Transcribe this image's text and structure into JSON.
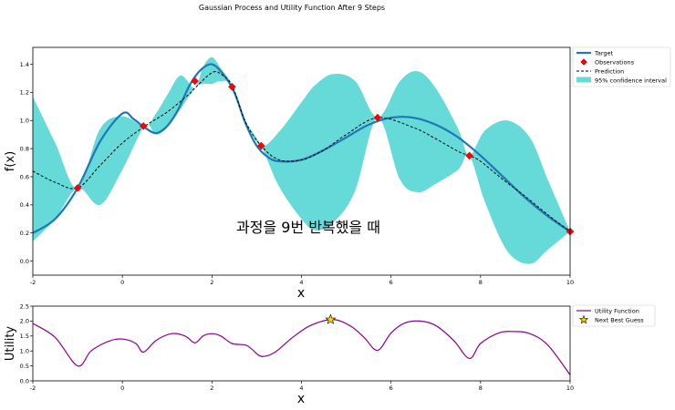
{
  "title": "Gaussian Process and Utility Function After 9 Steps",
  "annotation": "과정을 9번 반복했을 때",
  "colors": {
    "target": "#1f77b4",
    "observation": "#ff0000",
    "prediction": "#000000",
    "confidence": "#66d9d9",
    "utility": "#8b008b",
    "next_guess": "#ffd700"
  },
  "chart_data": [
    {
      "type": "line",
      "name": "gp",
      "xlabel": "x",
      "ylabel": "f(x)",
      "xlim": [
        -2,
        10
      ],
      "ylim": [
        -0.1,
        1.52
      ],
      "xticks": [
        -2,
        0,
        2,
        4,
        6,
        8,
        10
      ],
      "yticks": [
        0.0,
        0.2,
        0.4,
        0.6,
        0.8,
        1.0,
        1.2,
        1.4
      ],
      "grid": false,
      "legend_position": "outside-right-top",
      "legend": [
        "Target",
        "Observations",
        "Prediction",
        "95% confidence interval"
      ],
      "target": {
        "x": [
          -2,
          -1.5,
          -1,
          -0.5,
          0,
          0.25,
          0.5,
          0.75,
          1,
          1.25,
          1.5,
          1.75,
          2,
          2.25,
          2.5,
          2.75,
          3,
          3.25,
          3.5,
          4,
          4.5,
          5,
          5.5,
          6,
          6.5,
          7,
          7.5,
          8,
          8.5,
          9,
          9.5,
          10
        ],
        "y": [
          0.2,
          0.3,
          0.52,
          0.85,
          1.05,
          1.01,
          0.95,
          0.91,
          0.96,
          1.08,
          1.25,
          1.36,
          1.4,
          1.33,
          1.2,
          0.98,
          0.82,
          0.74,
          0.71,
          0.72,
          0.79,
          0.88,
          0.97,
          1.02,
          1.02,
          0.97,
          0.88,
          0.75,
          0.6,
          0.45,
          0.32,
          0.21
        ]
      },
      "prediction": {
        "x": [
          -2,
          -1.5,
          -1,
          -0.5,
          0,
          0.5,
          1,
          1.5,
          1.62,
          2,
          2.2,
          2.45,
          2.75,
          3.1,
          3.5,
          4,
          4.5,
          5,
          5.7,
          6.5,
          7,
          7.5,
          7.75,
          8,
          8.5,
          9,
          9.5,
          10
        ],
        "y": [
          0.64,
          0.56,
          0.52,
          0.68,
          0.84,
          0.96,
          1.06,
          1.19,
          1.23,
          1.34,
          1.33,
          1.25,
          0.99,
          0.82,
          0.72,
          0.72,
          0.79,
          0.9,
          1.02,
          0.95,
          0.87,
          0.78,
          0.75,
          0.71,
          0.58,
          0.46,
          0.33,
          0.21
        ]
      },
      "ci_upper": {
        "x": [
          -2,
          -1.5,
          -1,
          -0.5,
          0,
          0.5,
          0.75,
          1,
          1.3,
          1.62,
          1.8,
          2,
          2.2,
          2.45,
          2.75,
          3.1,
          3.5,
          4,
          4.3,
          4.7,
          5.2,
          5.7,
          6.2,
          6.6,
          7,
          7.5,
          7.75,
          8.1,
          8.6,
          9.1,
          9.5,
          10
        ],
        "y": [
          1.17,
          0.84,
          0.52,
          0.94,
          1.03,
          0.96,
          1.05,
          1.18,
          1.32,
          1.23,
          1.38,
          1.45,
          1.37,
          1.25,
          1.0,
          0.82,
          0.92,
          1.13,
          1.25,
          1.33,
          1.28,
          1.02,
          1.28,
          1.35,
          1.23,
          0.94,
          0.75,
          0.93,
          1.0,
          0.88,
          0.58,
          0.21
        ]
      },
      "ci_lower": {
        "x": [
          -2,
          -1.5,
          -1,
          -0.5,
          0,
          0.5,
          0.75,
          1,
          1.3,
          1.62,
          1.8,
          2,
          2.2,
          2.45,
          2.75,
          3.1,
          3.5,
          4,
          4.3,
          4.7,
          5.2,
          5.7,
          6.2,
          6.6,
          7,
          7.5,
          7.75,
          8.1,
          8.6,
          9.1,
          9.5,
          10
        ],
        "y": [
          0.14,
          0.3,
          0.52,
          0.4,
          0.65,
          0.96,
          0.9,
          0.95,
          1.08,
          1.23,
          1.26,
          1.26,
          1.28,
          1.25,
          1.0,
          0.82,
          0.53,
          0.3,
          0.22,
          0.27,
          0.5,
          1.02,
          0.58,
          0.49,
          0.55,
          0.65,
          0.75,
          0.42,
          0.07,
          -0.02,
          0.08,
          0.21
        ]
      },
      "observations": {
        "x": [
          -1.0,
          0.47,
          1.62,
          2.45,
          3.1,
          5.7,
          7.75,
          10.0
        ],
        "y": [
          0.52,
          0.96,
          1.28,
          1.24,
          0.82,
          1.02,
          0.75,
          0.21
        ]
      }
    },
    {
      "type": "line",
      "name": "utility",
      "xlabel": "x",
      "ylabel": "Utility",
      "xlim": [
        -2,
        10
      ],
      "ylim": [
        0,
        2.5
      ],
      "xticks": [
        -2,
        0,
        2,
        4,
        6,
        8,
        10
      ],
      "yticks": [
        0.0,
        0.5,
        1.0,
        1.5,
        2.0,
        2.5
      ],
      "grid": false,
      "legend_position": "outside-right-top",
      "legend": [
        "Utility Function",
        "Next Best Guess"
      ],
      "utility": {
        "x": [
          -2,
          -1.5,
          -1,
          -0.7,
          -0.3,
          0,
          0.3,
          0.47,
          0.75,
          1.1,
          1.4,
          1.62,
          1.8,
          2,
          2.2,
          2.45,
          2.75,
          2.9,
          3.1,
          3.4,
          3.8,
          4.2,
          4.7,
          5.1,
          5.4,
          5.7,
          6.0,
          6.3,
          6.65,
          7.0,
          7.4,
          7.75,
          8.0,
          8.4,
          8.75,
          9.1,
          9.5,
          10
        ],
        "y": [
          1.92,
          1.45,
          0.5,
          1.0,
          1.33,
          1.4,
          1.25,
          0.96,
          1.35,
          1.58,
          1.5,
          1.27,
          1.5,
          1.58,
          1.5,
          1.25,
          1.2,
          1.05,
          0.82,
          0.95,
          1.45,
          1.85,
          2.05,
          1.83,
          1.45,
          1.02,
          1.6,
          1.93,
          2.0,
          1.85,
          1.35,
          0.75,
          1.25,
          1.6,
          1.65,
          1.58,
          1.2,
          0.2
        ]
      },
      "next_best_guess": {
        "x": 4.65,
        "y": 2.05
      }
    }
  ]
}
